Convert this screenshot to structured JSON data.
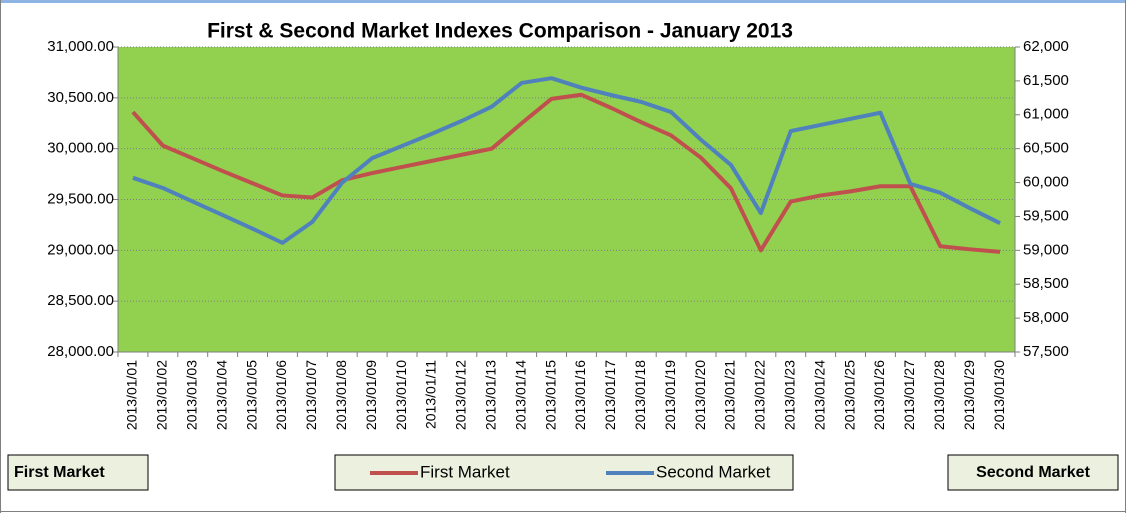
{
  "chart_data": {
    "type": "line",
    "title": "First & Second Market Indexes Comparison - January 2013",
    "y_label": "First Market",
    "y2_label": "Second Market",
    "categories": [
      "2013/01/01",
      "2013/01/02",
      "2013/01/03",
      "2013/01/04",
      "2013/01/05",
      "2013/01/06",
      "2013/01/07",
      "2013/01/08",
      "2013/01/09",
      "2013/01/10",
      "2013/01/11",
      "2013/01/12",
      "2013/01/13",
      "2013/01/14",
      "2013/01/15",
      "2013/01/16",
      "2013/01/17",
      "2013/01/18",
      "2013/01/19",
      "2013/01/20",
      "2013/01/21",
      "2013/01/22",
      "2013/01/23",
      "2013/01/24",
      "2013/01/25",
      "2013/01/26",
      "2013/01/27",
      "2013/01/28",
      "2013/01/29",
      "2013/01/30"
    ],
    "series": [
      {
        "name": "First Market",
        "color": "#c0504d",
        "axis": "y",
        "values": [
          30360,
          30030,
          29905,
          29780,
          29660,
          29540,
          29520,
          29690,
          29760,
          29820,
          29880,
          29940,
          30000,
          30250,
          30490,
          30530,
          30400,
          30260,
          30130,
          29910,
          29610,
          29000,
          29480,
          29540,
          29580,
          29630,
          29630,
          29040,
          29010,
          28985
        ]
      },
      {
        "name": "Second Market",
        "color": "#4f81bd",
        "axis": "y2",
        "values": [
          60070,
          59920,
          59720,
          59520,
          59320,
          59110,
          59420,
          60000,
          60360,
          60540,
          60720,
          60910,
          61120,
          61470,
          61540,
          61400,
          61290,
          61190,
          61040,
          60630,
          60260,
          59550,
          60760,
          60850,
          60940,
          61030,
          59980,
          59850,
          59620,
          59400
        ]
      }
    ],
    "ylim": [
      28000,
      31000
    ],
    "yticks": [
      {
        "value": 28000,
        "label": "28,000.00"
      },
      {
        "value": 28500,
        "label": "28,500.00"
      },
      {
        "value": 29000,
        "label": "29,000.00"
      },
      {
        "value": 29500,
        "label": "29,500.00"
      },
      {
        "value": 30000,
        "label": "30,000.00"
      },
      {
        "value": 30500,
        "label": "30,500.00"
      },
      {
        "value": 31000,
        "label": "31,000.00"
      }
    ],
    "y2lim": [
      57500,
      62000
    ],
    "y2ticks": [
      {
        "value": 57500,
        "label": "57,500"
      },
      {
        "value": 58000,
        "label": "58,000"
      },
      {
        "value": 58500,
        "label": "58,500"
      },
      {
        "value": 59000,
        "label": "59,000"
      },
      {
        "value": 59500,
        "label": "59,500"
      },
      {
        "value": 60000,
        "label": "60,000"
      },
      {
        "value": 60500,
        "label": "60,500"
      },
      {
        "value": 61000,
        "label": "61,000"
      },
      {
        "value": 61500,
        "label": "61,500"
      },
      {
        "value": 62000,
        "label": "62,000"
      }
    ],
    "grid": true,
    "plot_color": "#92d050",
    "legend": "bottom"
  }
}
